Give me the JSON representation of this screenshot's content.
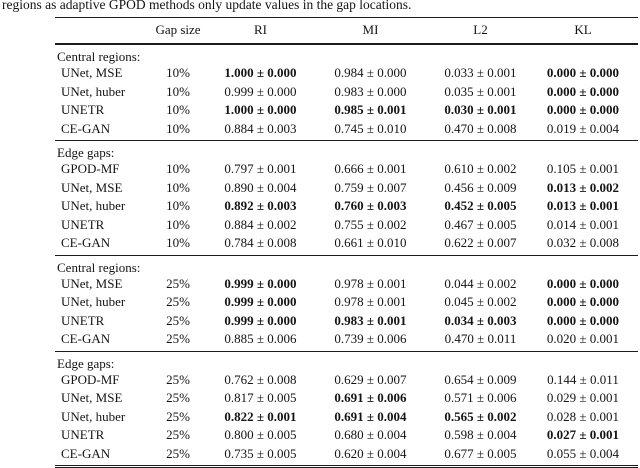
{
  "caption_fragment": "regions as adaptive GPOD methods only update values in the gap locations.",
  "table": {
    "headers": [
      "",
      "Gap size",
      "RI",
      "MI",
      "L2",
      "KL"
    ],
    "sections": [
      {
        "label": "Central regions:",
        "rows": [
          {
            "method": "UNet, MSE",
            "gap_size": "10%",
            "values": [
              {
                "text": "1.000 ± 0.000",
                "bold": true
              },
              {
                "text": "0.984 ± 0.000",
                "bold": false
              },
              {
                "text": "0.033 ± 0.001",
                "bold": false
              },
              {
                "text": "0.000 ± 0.000",
                "bold": true
              }
            ]
          },
          {
            "method": "UNet, huber",
            "gap_size": "10%",
            "values": [
              {
                "text": "0.999 ± 0.000",
                "bold": false
              },
              {
                "text": "0.983 ± 0.000",
                "bold": false
              },
              {
                "text": "0.035 ± 0.001",
                "bold": false
              },
              {
                "text": "0.000 ± 0.000",
                "bold": true
              }
            ]
          },
          {
            "method": "UNETR",
            "gap_size": "10%",
            "values": [
              {
                "text": "1.000 ± 0.000",
                "bold": true
              },
              {
                "text": "0.985 ± 0.001",
                "bold": true
              },
              {
                "text": "0.030 ± 0.001",
                "bold": true
              },
              {
                "text": "0.000 ± 0.000",
                "bold": true
              }
            ]
          },
          {
            "method": "CE-GAN",
            "gap_size": "10%",
            "values": [
              {
                "text": "0.884 ± 0.003",
                "bold": false
              },
              {
                "text": "0.745 ± 0.010",
                "bold": false
              },
              {
                "text": "0.470 ± 0.008",
                "bold": false
              },
              {
                "text": "0.019 ± 0.004",
                "bold": false
              }
            ]
          }
        ]
      },
      {
        "label": "Edge gaps:",
        "rows": [
          {
            "method": "GPOD-MF",
            "gap_size": "10%",
            "values": [
              {
                "text": "0.797 ± 0.001",
                "bold": false
              },
              {
                "text": "0.666 ± 0.001",
                "bold": false
              },
              {
                "text": "0.610 ± 0.002",
                "bold": false
              },
              {
                "text": "0.105 ± 0.001",
                "bold": false
              }
            ]
          },
          {
            "method": "UNet, MSE",
            "gap_size": "10%",
            "values": [
              {
                "text": "0.890 ± 0.004",
                "bold": false
              },
              {
                "text": "0.759 ± 0.007",
                "bold": false
              },
              {
                "text": "0.456 ± 0.009",
                "bold": false
              },
              {
                "text": "0.013 ± 0.002",
                "bold": true
              }
            ]
          },
          {
            "method": "UNet, huber",
            "gap_size": "10%",
            "values": [
              {
                "text": "0.892 ± 0.003",
                "bold": true
              },
              {
                "text": "0.760 ± 0.003",
                "bold": true
              },
              {
                "text": "0.452 ± 0.005",
                "bold": true
              },
              {
                "text": "0.013 ± 0.001",
                "bold": true
              }
            ]
          },
          {
            "method": "UNETR",
            "gap_size": "10%",
            "values": [
              {
                "text": "0.884 ± 0.002",
                "bold": false
              },
              {
                "text": "0.755 ± 0.002",
                "bold": false
              },
              {
                "text": "0.467 ± 0.005",
                "bold": false
              },
              {
                "text": "0.014 ± 0.001",
                "bold": false
              }
            ]
          },
          {
            "method": "CE-GAN",
            "gap_size": "10%",
            "values": [
              {
                "text": "0.784 ± 0.008",
                "bold": false
              },
              {
                "text": "0.661 ± 0.010",
                "bold": false
              },
              {
                "text": "0.622 ± 0.007",
                "bold": false
              },
              {
                "text": "0.032 ± 0.008",
                "bold": false
              }
            ]
          }
        ]
      },
      {
        "label": "Central regions:",
        "rows": [
          {
            "method": "UNet, MSE",
            "gap_size": "25%",
            "values": [
              {
                "text": "0.999 ± 0.000",
                "bold": true
              },
              {
                "text": "0.978 ± 0.001",
                "bold": false
              },
              {
                "text": "0.044 ± 0.002",
                "bold": false
              },
              {
                "text": "0.000 ± 0.000",
                "bold": true
              }
            ]
          },
          {
            "method": "UNet, huber",
            "gap_size": "25%",
            "values": [
              {
                "text": "0.999 ± 0.000",
                "bold": true
              },
              {
                "text": "0.978 ± 0.001",
                "bold": false
              },
              {
                "text": "0.045 ± 0.002",
                "bold": false
              },
              {
                "text": "0.000 ± 0.000",
                "bold": true
              }
            ]
          },
          {
            "method": "UNETR",
            "gap_size": "25%",
            "values": [
              {
                "text": "0.999 ± 0.000",
                "bold": true
              },
              {
                "text": "0.983 ± 0.001",
                "bold": true
              },
              {
                "text": "0.034 ± 0.003",
                "bold": true
              },
              {
                "text": "0.000 ± 0.000",
                "bold": true
              }
            ]
          },
          {
            "method": "CE-GAN",
            "gap_size": "25%",
            "values": [
              {
                "text": "0.885 ± 0.006",
                "bold": false
              },
              {
                "text": "0.739 ± 0.006",
                "bold": false
              },
              {
                "text": "0.470 ± 0.011",
                "bold": false
              },
              {
                "text": "0.020 ± 0.001",
                "bold": false
              }
            ]
          }
        ]
      },
      {
        "label": "Edge gaps:",
        "rows": [
          {
            "method": "GPOD-MF",
            "gap_size": "25%",
            "values": [
              {
                "text": "0.762 ± 0.008",
                "bold": false
              },
              {
                "text": "0.629 ± 0.007",
                "bold": false
              },
              {
                "text": "0.654 ± 0.009",
                "bold": false
              },
              {
                "text": "0.144 ± 0.011",
                "bold": false
              }
            ]
          },
          {
            "method": "UNet, MSE",
            "gap_size": "25%",
            "values": [
              {
                "text": "0.817 ± 0.005",
                "bold": false
              },
              {
                "text": "0.691 ± 0.006",
                "bold": true
              },
              {
                "text": "0.571 ± 0.006",
                "bold": false
              },
              {
                "text": "0.029 ± 0.001",
                "bold": false
              }
            ]
          },
          {
            "method": "UNet, huber",
            "gap_size": "25%",
            "values": [
              {
                "text": "0.822 ± 0.001",
                "bold": true
              },
              {
                "text": "0.691 ± 0.004",
                "bold": true
              },
              {
                "text": "0.565 ± 0.002",
                "bold": true
              },
              {
                "text": "0.028 ± 0.001",
                "bold": false
              }
            ]
          },
          {
            "method": "UNETR",
            "gap_size": "25%",
            "values": [
              {
                "text": "0.800 ± 0.005",
                "bold": false
              },
              {
                "text": "0.680 ± 0.004",
                "bold": false
              },
              {
                "text": "0.598 ± 0.004",
                "bold": false
              },
              {
                "text": "0.027 ± 0.001",
                "bold": true
              }
            ]
          },
          {
            "method": "CE-GAN",
            "gap_size": "25%",
            "values": [
              {
                "text": "0.735 ± 0.005",
                "bold": false
              },
              {
                "text": "0.620 ± 0.004",
                "bold": false
              },
              {
                "text": "0.677 ± 0.005",
                "bold": false
              },
              {
                "text": "0.055 ± 0.004",
                "bold": false
              }
            ]
          }
        ]
      }
    ]
  }
}
